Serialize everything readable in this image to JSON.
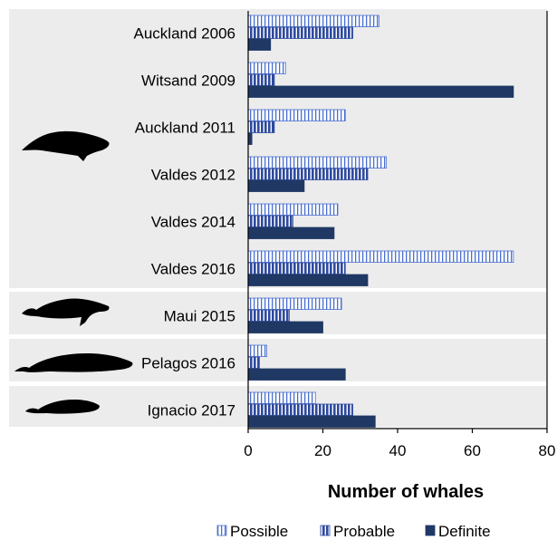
{
  "chart_data": {
    "type": "bar",
    "orientation": "horizontal",
    "categories": [
      "Auckland 2006",
      "Witsand 2009",
      "Auckland 2011",
      "Valdes 2012",
      "Valdes 2014",
      "Valdes 2016",
      "Maui 2015",
      "Pelagos 2016",
      "Ignacio 2017"
    ],
    "series": [
      {
        "name": "Possible",
        "values": [
          35,
          10,
          26,
          37,
          24,
          71,
          25,
          5,
          18
        ]
      },
      {
        "name": "Probable",
        "values": [
          28,
          7,
          7,
          32,
          12,
          26,
          11,
          3,
          28
        ]
      },
      {
        "name": "Definite",
        "values": [
          6,
          71,
          1,
          15,
          23,
          32,
          20,
          26,
          34
        ]
      }
    ],
    "xlabel": "Number of whales",
    "xlim": [
      0,
      80
    ],
    "xticks": [
      0,
      20,
      40,
      60,
      80
    ],
    "grid": false,
    "legend": "bottom",
    "groups": [
      {
        "species_icon": "right-whale-icon",
        "categories": [
          "Auckland 2006",
          "Witsand 2009",
          "Auckland 2011",
          "Valdes 2012",
          "Valdes 2014",
          "Valdes 2016"
        ]
      },
      {
        "species_icon": "humpback-whale-icon",
        "categories": [
          "Maui 2015"
        ]
      },
      {
        "species_icon": "blue-whale-icon",
        "categories": [
          "Pelagos 2016"
        ]
      },
      {
        "species_icon": "gray-whale-icon",
        "categories": [
          "Ignacio 2017"
        ]
      }
    ]
  },
  "colors": {
    "definite": "#1f3864",
    "probable": "#2e4a9e",
    "possible": "#4a6fd0",
    "panel": "#ececec"
  }
}
